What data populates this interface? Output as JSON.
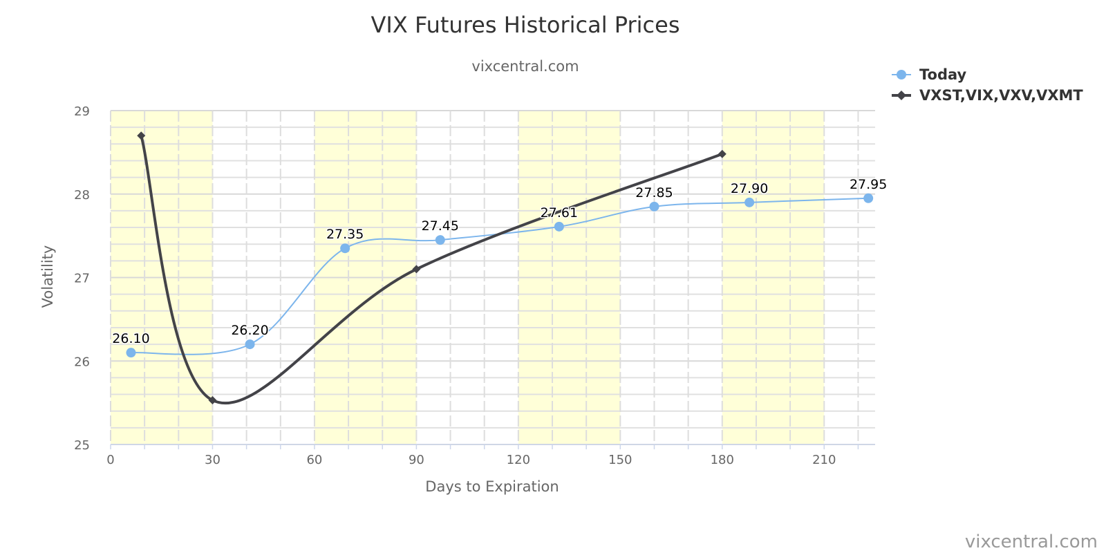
{
  "chart_data": {
    "type": "line",
    "title": "VIX Futures Historical Prices",
    "subtitle": "vixcentral.com",
    "xlabel": "Days to Expiration",
    "ylabel": "Volatility",
    "xlim": [
      0,
      225
    ],
    "ylim": [
      25,
      29
    ],
    "x_ticks": [
      0,
      30,
      60,
      90,
      120,
      150,
      180,
      210
    ],
    "y_ticks": [
      25,
      26,
      27,
      28,
      29
    ],
    "shaded_bands": [
      [
        0,
        30
      ],
      [
        60,
        90
      ],
      [
        120,
        150
      ],
      [
        180,
        210
      ]
    ],
    "grid": true,
    "legend_position": "top-right",
    "series": [
      {
        "name": "Today",
        "color": "#7cb5ec",
        "marker": "circle",
        "x": [
          6,
          41,
          69,
          97,
          132,
          160,
          188,
          223
        ],
        "y": [
          26.1,
          26.2,
          27.35,
          27.45,
          27.61,
          27.85,
          27.9,
          27.95
        ],
        "labels": [
          "26.10",
          "26.20",
          "27.35",
          "27.45",
          "27.61",
          "27.85",
          "27.90",
          "27.95"
        ]
      },
      {
        "name": "VXST,VIX,VXV,VXMT",
        "color": "#434348",
        "marker": "diamond",
        "x": [
          9,
          30,
          90,
          180
        ],
        "y": [
          28.7,
          25.53,
          27.1,
          28.48
        ]
      }
    ]
  },
  "credit": "vixcentral.com"
}
